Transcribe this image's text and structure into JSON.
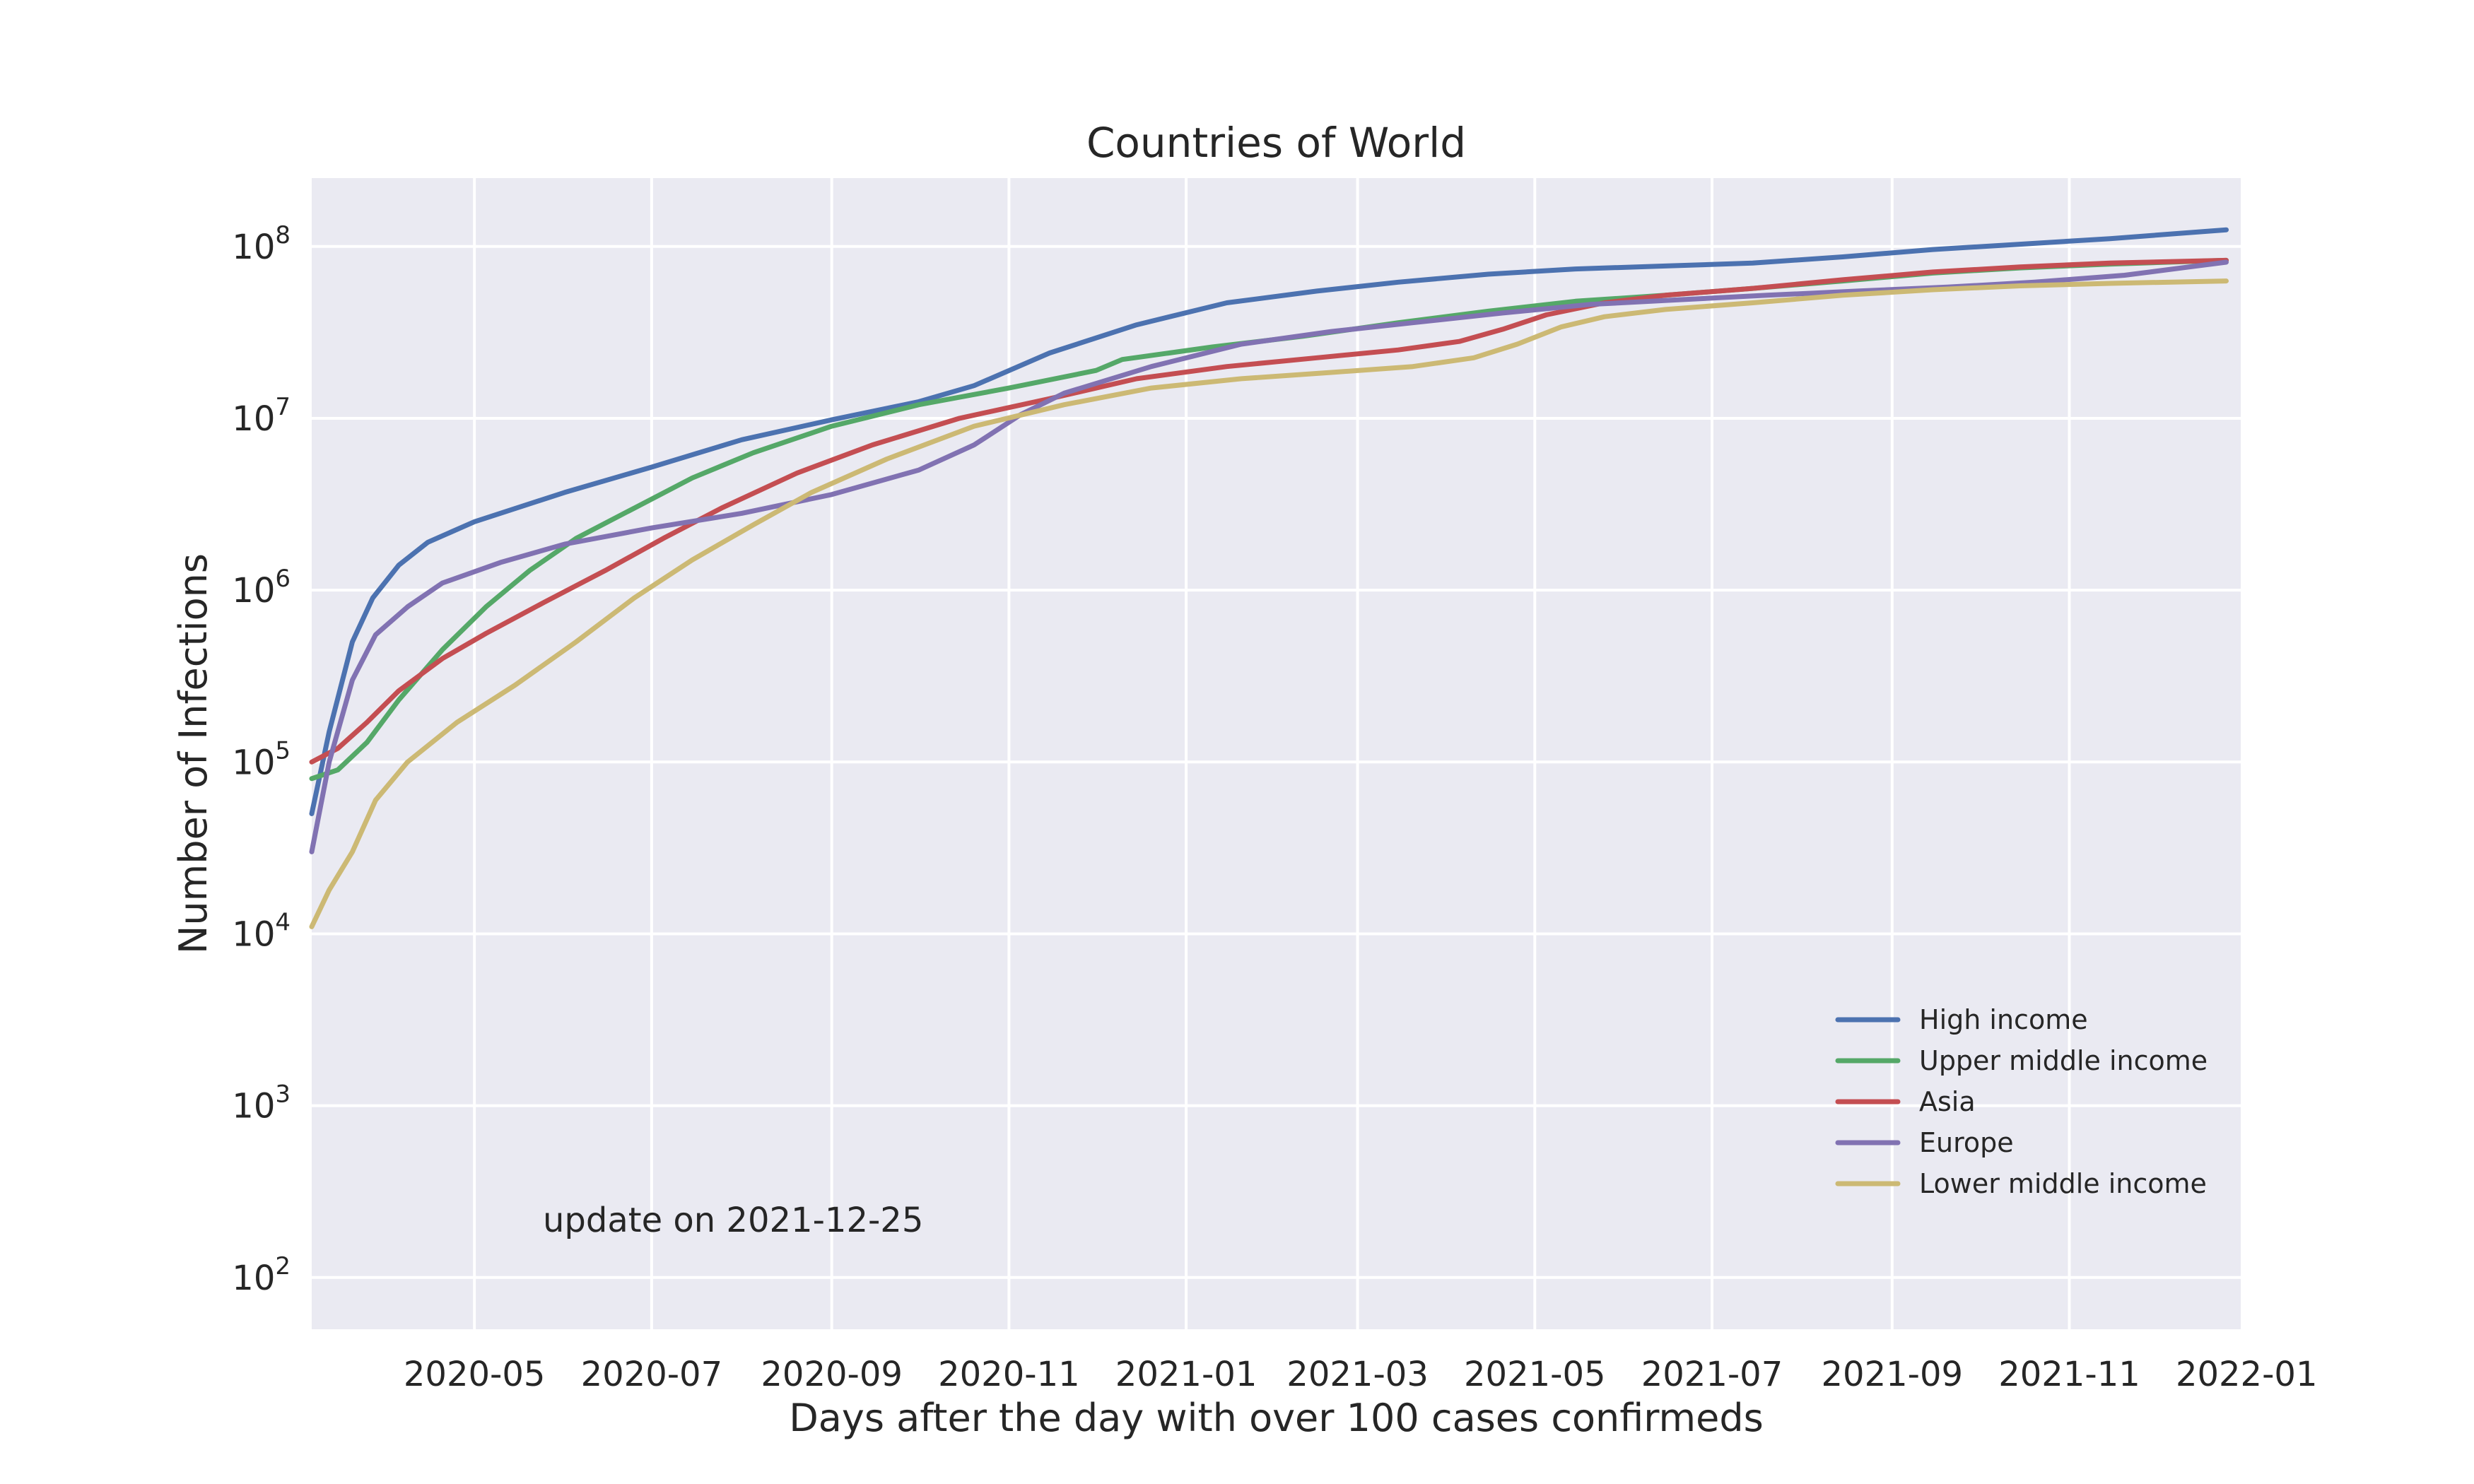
{
  "chart_data": {
    "type": "line",
    "title": "Countries of World",
    "xlabel": "Days after the day with over 100 cases confirmeds",
    "ylabel": "Number of Infections",
    "yscale": "log",
    "ylim": [
      50,
      250000000
    ],
    "xlim": [
      "2020-03-06",
      "2021-12-30"
    ],
    "grid": true,
    "legend_position": "lower-right",
    "annotation": "update on 2021-12-25",
    "x_ticks": [
      "2020-05",
      "2020-07",
      "2020-09",
      "2020-11",
      "2021-01",
      "2021-03",
      "2021-05",
      "2021-07",
      "2021-09",
      "2021-11",
      "2022-01"
    ],
    "y_ticks": [
      {
        "value": 100,
        "base": "10",
        "exp": "2"
      },
      {
        "value": 1000,
        "base": "10",
        "exp": "3"
      },
      {
        "value": 10000,
        "base": "10",
        "exp": "4"
      },
      {
        "value": 100000,
        "base": "10",
        "exp": "5"
      },
      {
        "value": 1000000,
        "base": "10",
        "exp": "6"
      },
      {
        "value": 10000000,
        "base": "10",
        "exp": "7"
      },
      {
        "value": 100000000,
        "base": "10",
        "exp": "8"
      }
    ],
    "series": [
      {
        "name": "High income",
        "color": "#4c72b0",
        "points": [
          [
            "2020-03-06",
            50000
          ],
          [
            "2020-03-12",
            150000
          ],
          [
            "2020-03-20",
            500000
          ],
          [
            "2020-03-27",
            900000
          ],
          [
            "2020-04-05",
            1400000
          ],
          [
            "2020-04-15",
            1900000
          ],
          [
            "2020-05-01",
            2500000
          ],
          [
            "2020-06-01",
            3700000
          ],
          [
            "2020-07-01",
            5200000
          ],
          [
            "2020-08-01",
            7500000
          ],
          [
            "2020-09-01",
            9800000
          ],
          [
            "2020-10-01",
            12500000
          ],
          [
            "2020-10-20",
            15500000
          ],
          [
            "2020-11-15",
            24000000
          ],
          [
            "2020-12-15",
            35000000
          ],
          [
            "2021-01-15",
            47000000
          ],
          [
            "2021-02-15",
            55000000
          ],
          [
            "2021-03-15",
            62000000
          ],
          [
            "2021-04-15",
            69000000
          ],
          [
            "2021-05-15",
            74000000
          ],
          [
            "2021-06-15",
            77000000
          ],
          [
            "2021-07-15",
            80000000
          ],
          [
            "2021-08-15",
            87000000
          ],
          [
            "2021-09-15",
            96000000
          ],
          [
            "2021-10-15",
            103000000
          ],
          [
            "2021-11-15",
            111000000
          ],
          [
            "2021-12-25",
            125000000
          ]
        ]
      },
      {
        "name": "Upper middle income",
        "color": "#55a868",
        "points": [
          [
            "2020-03-06",
            80000
          ],
          [
            "2020-03-15",
            90000
          ],
          [
            "2020-03-25",
            130000
          ],
          [
            "2020-04-05",
            230000
          ],
          [
            "2020-04-20",
            450000
          ],
          [
            "2020-05-05",
            800000
          ],
          [
            "2020-05-20",
            1300000
          ],
          [
            "2020-06-05",
            2000000
          ],
          [
            "2020-06-25",
            3000000
          ],
          [
            "2020-07-15",
            4500000
          ],
          [
            "2020-08-05",
            6300000
          ],
          [
            "2020-09-01",
            9000000
          ],
          [
            "2020-10-01",
            12000000
          ],
          [
            "2020-11-01",
            15000000
          ],
          [
            "2020-12-01",
            19000000
          ],
          [
            "2020-12-10",
            22000000
          ],
          [
            "2021-01-10",
            26000000
          ],
          [
            "2021-02-10",
            30000000
          ],
          [
            "2021-03-15",
            36000000
          ],
          [
            "2021-04-15",
            42000000
          ],
          [
            "2021-05-15",
            48000000
          ],
          [
            "2021-06-15",
            52000000
          ],
          [
            "2021-07-15",
            57000000
          ],
          [
            "2021-08-15",
            63000000
          ],
          [
            "2021-09-15",
            70000000
          ],
          [
            "2021-10-15",
            75000000
          ],
          [
            "2021-11-15",
            79000000
          ],
          [
            "2021-12-25",
            83000000
          ]
        ]
      },
      {
        "name": "Asia",
        "color": "#c44e52",
        "points": [
          [
            "2020-03-06",
            100000
          ],
          [
            "2020-03-15",
            120000
          ],
          [
            "2020-03-25",
            170000
          ],
          [
            "2020-04-05",
            260000
          ],
          [
            "2020-04-20",
            400000
          ],
          [
            "2020-05-05",
            560000
          ],
          [
            "2020-05-25",
            850000
          ],
          [
            "2020-06-15",
            1300000
          ],
          [
            "2020-07-05",
            2000000
          ],
          [
            "2020-07-25",
            3000000
          ],
          [
            "2020-08-20",
            4800000
          ],
          [
            "2020-09-15",
            7000000
          ],
          [
            "2020-10-15",
            10000000
          ],
          [
            "2020-11-15",
            13000000
          ],
          [
            "2020-12-15",
            17000000
          ],
          [
            "2021-01-15",
            20000000
          ],
          [
            "2021-02-15",
            22500000
          ],
          [
            "2021-03-15",
            25000000
          ],
          [
            "2021-04-05",
            28000000
          ],
          [
            "2021-04-20",
            33000000
          ],
          [
            "2021-05-05",
            40000000
          ],
          [
            "2021-05-25",
            47000000
          ],
          [
            "2021-06-15",
            52000000
          ],
          [
            "2021-07-15",
            57000000
          ],
          [
            "2021-08-15",
            64000000
          ],
          [
            "2021-09-15",
            71000000
          ],
          [
            "2021-10-15",
            76000000
          ],
          [
            "2021-11-15",
            80000000
          ],
          [
            "2021-12-25",
            83000000
          ]
        ]
      },
      {
        "name": "Europe",
        "color": "#8172b2",
        "points": [
          [
            "2020-03-06",
            30000
          ],
          [
            "2020-03-12",
            100000
          ],
          [
            "2020-03-20",
            300000
          ],
          [
            "2020-03-28",
            550000
          ],
          [
            "2020-04-08",
            800000
          ],
          [
            "2020-04-20",
            1100000
          ],
          [
            "2020-05-10",
            1450000
          ],
          [
            "2020-06-01",
            1850000
          ],
          [
            "2020-07-01",
            2300000
          ],
          [
            "2020-08-01",
            2800000
          ],
          [
            "2020-09-01",
            3600000
          ],
          [
            "2020-10-01",
            5000000
          ],
          [
            "2020-10-20",
            7000000
          ],
          [
            "2020-11-05",
            10500000
          ],
          [
            "2020-11-20",
            14000000
          ],
          [
            "2020-12-20",
            20000000
          ],
          [
            "2021-01-20",
            27000000
          ],
          [
            "2021-02-20",
            32000000
          ],
          [
            "2021-03-20",
            36000000
          ],
          [
            "2021-04-20",
            41000000
          ],
          [
            "2021-05-20",
            46000000
          ],
          [
            "2021-06-20",
            49000000
          ],
          [
            "2021-07-20",
            52000000
          ],
          [
            "2021-08-20",
            55000000
          ],
          [
            "2021-09-20",
            58000000
          ],
          [
            "2021-10-20",
            62000000
          ],
          [
            "2021-11-20",
            68000000
          ],
          [
            "2021-12-25",
            81000000
          ]
        ]
      },
      {
        "name": "Lower middle income",
        "color": "#ccb974",
        "points": [
          [
            "2020-03-06",
            11000
          ],
          [
            "2020-03-12",
            18000
          ],
          [
            "2020-03-20",
            30000
          ],
          [
            "2020-03-28",
            60000
          ],
          [
            "2020-04-08",
            100000
          ],
          [
            "2020-04-25",
            170000
          ],
          [
            "2020-05-15",
            280000
          ],
          [
            "2020-06-05",
            500000
          ],
          [
            "2020-06-25",
            900000
          ],
          [
            "2020-07-15",
            1500000
          ],
          [
            "2020-08-05",
            2400000
          ],
          [
            "2020-08-25",
            3700000
          ],
          [
            "2020-09-20",
            5800000
          ],
          [
            "2020-10-20",
            9000000
          ],
          [
            "2020-11-20",
            12000000
          ],
          [
            "2020-12-20",
            15000000
          ],
          [
            "2021-01-20",
            17000000
          ],
          [
            "2021-02-20",
            18500000
          ],
          [
            "2021-03-20",
            20000000
          ],
          [
            "2021-04-10",
            22500000
          ],
          [
            "2021-04-25",
            27000000
          ],
          [
            "2021-05-10",
            34000000
          ],
          [
            "2021-05-25",
            39000000
          ],
          [
            "2021-06-15",
            43000000
          ],
          [
            "2021-07-15",
            47000000
          ],
          [
            "2021-08-15",
            52000000
          ],
          [
            "2021-09-15",
            56000000
          ],
          [
            "2021-10-15",
            59000000
          ],
          [
            "2021-11-15",
            61000000
          ],
          [
            "2021-12-25",
            63000000
          ]
        ]
      }
    ]
  }
}
